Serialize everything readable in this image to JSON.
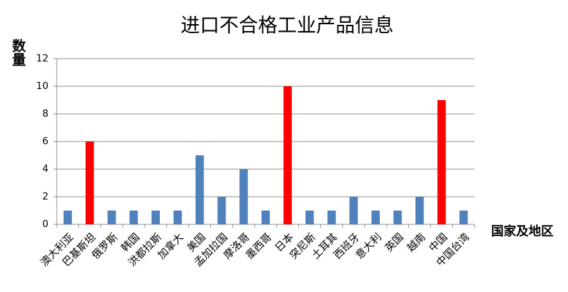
{
  "chart_data": {
    "type": "bar",
    "title": "进口不合格工业产品信息",
    "y_label": "数量",
    "x_label": "国家及地区",
    "categories": [
      "澳大利亚",
      "巴基斯坦",
      "俄罗斯",
      "韩国",
      "洪都拉斯",
      "加拿大",
      "美国",
      "孟加拉国",
      "摩洛哥",
      "墨西哥",
      "日本",
      "突尼斯",
      "土耳其",
      "西班牙",
      "意大利",
      "英国",
      "越南",
      "中国",
      "中国台湾"
    ],
    "values": [
      1,
      6,
      1,
      1,
      1,
      1,
      5,
      2,
      4,
      1,
      10,
      1,
      1,
      2,
      1,
      1,
      2,
      9,
      1
    ],
    "colors": [
      "#4f81bd",
      "#ff0000",
      "#4f81bd",
      "#4f81bd",
      "#4f81bd",
      "#4f81bd",
      "#4f81bd",
      "#4f81bd",
      "#4f81bd",
      "#4f81bd",
      "#ff0000",
      "#4f81bd",
      "#4f81bd",
      "#4f81bd",
      "#4f81bd",
      "#4f81bd",
      "#4f81bd",
      "#ff0000",
      "#4f81bd"
    ],
    "ylim": [
      0,
      12
    ],
    "yticks": [
      0,
      2,
      4,
      6,
      8,
      10,
      12
    ],
    "grid": true
  }
}
